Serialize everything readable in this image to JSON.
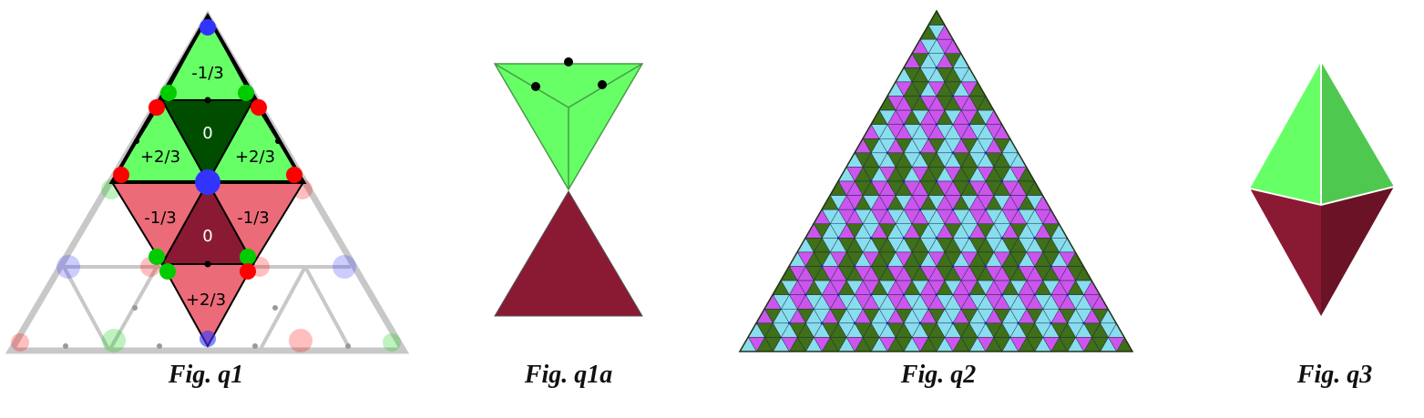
{
  "figures": {
    "q1": {
      "caption": "Fig. q1",
      "labels": {
        "top": "-1/3",
        "upper_center": "0",
        "upper_left": "+2/3",
        "upper_right": "+2/3",
        "lower_left": "-1/3",
        "lower_center": "0",
        "lower_right": "-1/3",
        "bottom": "+2/3"
      }
    },
    "q1a": {
      "caption": "Fig. q1a"
    },
    "q2": {
      "caption": "Fig. q2"
    },
    "q3": {
      "caption": "Fig. q3"
    }
  },
  "colors": {
    "green": "#66ff66",
    "dark_green": "#004d00",
    "pink": "#ec6b78",
    "maroon": "#8a1a33",
    "red_dot": "#ff0000",
    "blue_dot": "#3333ff",
    "green_dot": "#00cc00",
    "grid_gray": "#c8c8c8",
    "tile_green": "#3f6f18",
    "tile_magenta": "#cc55ee",
    "tile_cyan": "#88ddee",
    "q3_green_left": "#66ff66",
    "q3_green_right": "#4fc84f",
    "q3_maroon_left": "#8a1a33",
    "q3_maroon_right": "#6a1226"
  }
}
